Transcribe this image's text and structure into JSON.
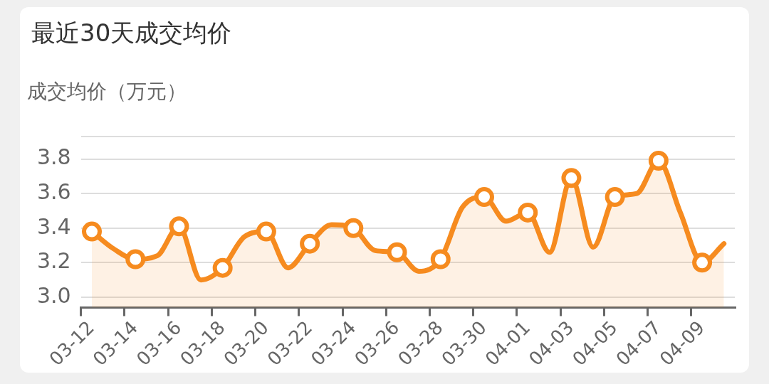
{
  "chart_data": {
    "type": "area",
    "title": "最近30天成交均价",
    "ylabel": "成交均价（万元）",
    "categories": [
      "03-12",
      null,
      "03-14",
      null,
      "03-16",
      null,
      "03-18",
      null,
      "03-20",
      null,
      "03-22",
      null,
      "03-24",
      null,
      "03-26",
      null,
      "03-28",
      null,
      "03-30",
      null,
      "04-01",
      null,
      "04-03",
      null,
      "04-05",
      null,
      "04-07",
      null,
      "04-09",
      null
    ],
    "series": [
      {
        "color": "#f68b1f",
        "values": [
          3.38,
          3.28,
          3.22,
          3.24,
          3.41,
          3.1,
          3.17,
          3.35,
          3.38,
          3.17,
          3.31,
          3.42,
          3.4,
          3.27,
          3.26,
          3.15,
          3.22,
          3.52,
          3.58,
          3.44,
          3.49,
          3.26,
          3.69,
          3.29,
          3.58,
          3.6,
          3.79,
          3.49,
          3.2,
          3.31
        ]
      }
    ],
    "ylim": [
      2.94,
      3.93
    ],
    "yticks": [
      {
        "value": 3,
        "label": "3.0"
      },
      {
        "value": 3.2,
        "label": "3.2"
      },
      {
        "value": 3.4,
        "label": "3.4"
      },
      {
        "value": 3.6,
        "label": "3.6"
      },
      {
        "value": 3.8,
        "label": "3.8"
      },
      {
        "value": 3.93,
        "label": null
      }
    ],
    "grid": "y",
    "legend": false,
    "marker": "circle",
    "line_style": "solid"
  }
}
